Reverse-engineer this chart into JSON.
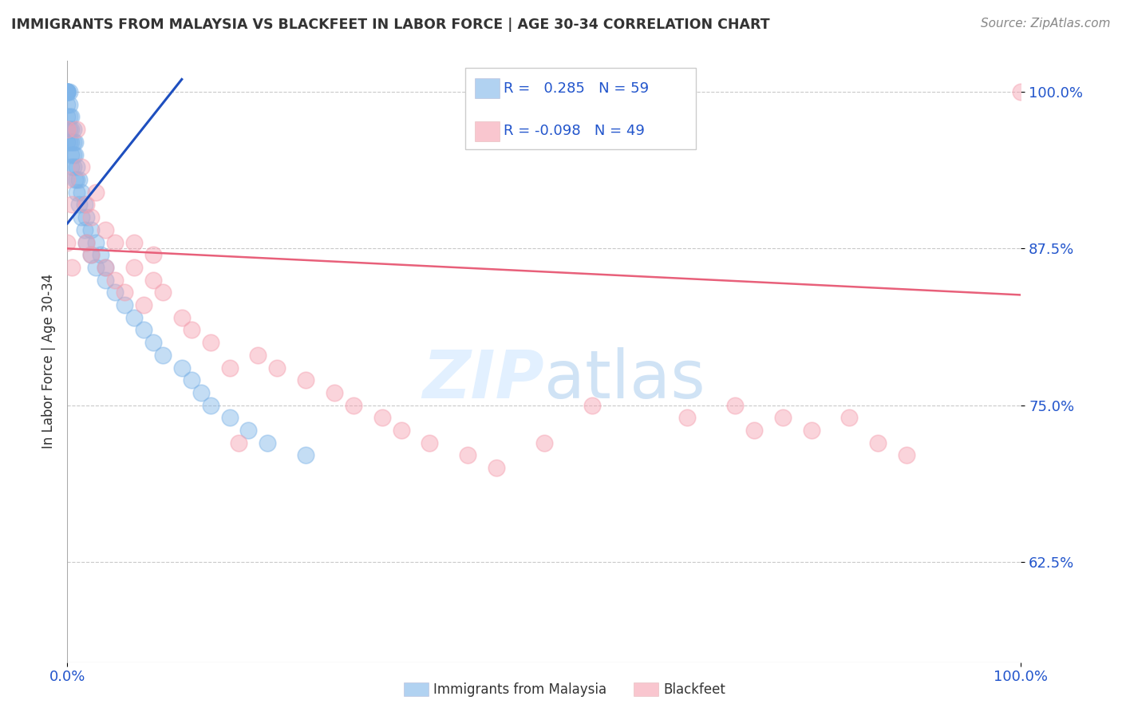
{
  "title": "IMMIGRANTS FROM MALAYSIA VS BLACKFEET IN LABOR FORCE | AGE 30-34 CORRELATION CHART",
  "source": "Source: ZipAtlas.com",
  "ylabel": "In Labor Force | Age 30-34",
  "xlim": [
    0.0,
    1.0
  ],
  "ylim": [
    0.545,
    1.025
  ],
  "yticks": [
    0.625,
    0.75,
    0.875,
    1.0
  ],
  "ytick_labels": [
    "62.5%",
    "75.0%",
    "87.5%",
    "100.0%"
  ],
  "xtick_labels": [
    "0.0%",
    "100.0%"
  ],
  "xticks": [
    0.0,
    1.0
  ],
  "legend_r1": " 0.285",
  "legend_n1": "59",
  "legend_r2": "-0.098",
  "legend_n2": "49",
  "blue_color": "#7EB4E8",
  "pink_color": "#F5A0B0",
  "trend_blue": "#1E4FBF",
  "trend_pink": "#E8607A",
  "background": "#FFFFFF",
  "blue_x": [
    0.0,
    0.0,
    0.0,
    0.0,
    0.0,
    0.0,
    0.0,
    0.0,
    0.0,
    0.0,
    0.002,
    0.002,
    0.002,
    0.002,
    0.002,
    0.004,
    0.004,
    0.004,
    0.004,
    0.004,
    0.006,
    0.006,
    0.006,
    0.006,
    0.008,
    0.008,
    0.008,
    0.01,
    0.01,
    0.01,
    0.012,
    0.012,
    0.015,
    0.015,
    0.018,
    0.018,
    0.02,
    0.02,
    0.025,
    0.025,
    0.03,
    0.03,
    0.035,
    0.04,
    0.04,
    0.05,
    0.06,
    0.07,
    0.08,
    0.09,
    0.1,
    0.12,
    0.13,
    0.14,
    0.15,
    0.17,
    0.19,
    0.21,
    0.25
  ],
  "blue_y": [
    1.0,
    1.0,
    1.0,
    1.0,
    1.0,
    1.0,
    0.99,
    0.98,
    0.97,
    0.96,
    1.0,
    0.99,
    0.98,
    0.97,
    0.96,
    0.98,
    0.97,
    0.96,
    0.95,
    0.94,
    0.97,
    0.96,
    0.95,
    0.94,
    0.96,
    0.95,
    0.93,
    0.94,
    0.93,
    0.92,
    0.93,
    0.91,
    0.92,
    0.9,
    0.91,
    0.89,
    0.9,
    0.88,
    0.89,
    0.87,
    0.88,
    0.86,
    0.87,
    0.86,
    0.85,
    0.84,
    0.83,
    0.82,
    0.81,
    0.8,
    0.79,
    0.78,
    0.77,
    0.76,
    0.75,
    0.74,
    0.73,
    0.72,
    0.71
  ],
  "pink_x": [
    0.0,
    0.0,
    0.0,
    0.005,
    0.005,
    0.01,
    0.015,
    0.02,
    0.02,
    0.025,
    0.025,
    0.03,
    0.04,
    0.04,
    0.05,
    0.05,
    0.06,
    0.07,
    0.07,
    0.08,
    0.09,
    0.09,
    0.1,
    0.12,
    0.13,
    0.15,
    0.17,
    0.18,
    0.2,
    0.22,
    0.25,
    0.28,
    0.3,
    0.33,
    0.35,
    0.38,
    0.42,
    0.45,
    0.5,
    0.55,
    0.65,
    0.7,
    0.72,
    0.75,
    0.78,
    0.82,
    0.85,
    0.88,
    1.0
  ],
  "pink_y": [
    0.93,
    0.88,
    0.97,
    0.91,
    0.86,
    0.97,
    0.94,
    0.91,
    0.88,
    0.9,
    0.87,
    0.92,
    0.89,
    0.86,
    0.88,
    0.85,
    0.84,
    0.88,
    0.86,
    0.83,
    0.87,
    0.85,
    0.84,
    0.82,
    0.81,
    0.8,
    0.78,
    0.72,
    0.79,
    0.78,
    0.77,
    0.76,
    0.75,
    0.74,
    0.73,
    0.72,
    0.71,
    0.7,
    0.72,
    0.75,
    0.74,
    0.75,
    0.73,
    0.74,
    0.73,
    0.74,
    0.72,
    0.71,
    1.0
  ],
  "blue_trend_x0": 0.0,
  "blue_trend_y0": 0.895,
  "blue_trend_x1": 0.12,
  "blue_trend_y1": 1.01,
  "pink_trend_x0": 0.0,
  "pink_trend_y0": 0.875,
  "pink_trend_x1": 1.0,
  "pink_trend_y1": 0.838
}
